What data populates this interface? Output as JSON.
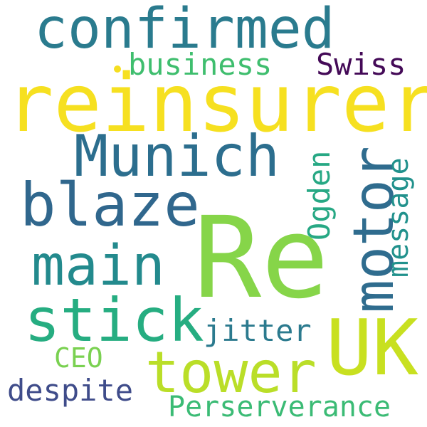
{
  "words": {
    "confirmed": {
      "text": "confirmed",
      "color": "#2a7b8e"
    },
    "reinsurer": {
      "text": "reinsurer",
      "color": "#f6e020"
    },
    "business": {
      "text": "business",
      "color": "#3fbe6e"
    },
    "swiss": {
      "text": "Swiss",
      "color": "#440a57"
    },
    "munich": {
      "text": "Munich",
      "color": "#2c6e8e"
    },
    "blaze": {
      "text": "blaze",
      "color": "#30678d"
    },
    "motor": {
      "text": "motor",
      "color": "#2f6c8e"
    },
    "ogden": {
      "text": "Ogden",
      "color": "#27a884"
    },
    "message": {
      "text": "message",
      "color": "#21918c"
    },
    "main": {
      "text": "main",
      "color": "#238a8d"
    },
    "re": {
      "text": "Re",
      "color": "#86d549"
    },
    "stick": {
      "text": "stick",
      "color": "#26ad81"
    },
    "uk": {
      "text": "UK",
      "color": "#c8e020"
    },
    "jitter": {
      "text": "jitter",
      "color": "#2b7a8e"
    },
    "ceo": {
      "text": "CEO",
      "color": "#7ad151"
    },
    "tower": {
      "text": "tower",
      "color": "#bade28"
    },
    "despite": {
      "text": "despite",
      "color": "#3f4c8a"
    },
    "perserverance": {
      "text": "Perserverance",
      "color": "#3bbb75"
    }
  }
}
